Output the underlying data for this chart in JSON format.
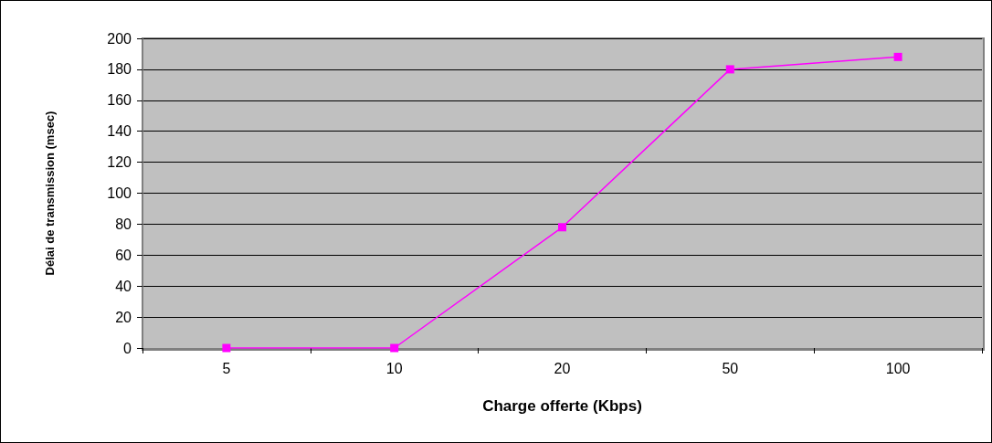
{
  "chart_data": {
    "type": "line",
    "xlabel": "Charge offerte (Kbps)",
    "ylabel": "Délai de transmission (msec)",
    "categories": [
      "5",
      "10",
      "20",
      "50",
      "100"
    ],
    "series": [
      {
        "color": "#ff00ff",
        "values": [
          0,
          0,
          78,
          180,
          188
        ]
      }
    ],
    "ylim": [
      0,
      200
    ],
    "yticks": [
      0,
      20,
      40,
      60,
      80,
      100,
      120,
      140,
      160,
      180,
      200
    ],
    "grid": "y",
    "marker": "square",
    "line_style": "solid"
  }
}
